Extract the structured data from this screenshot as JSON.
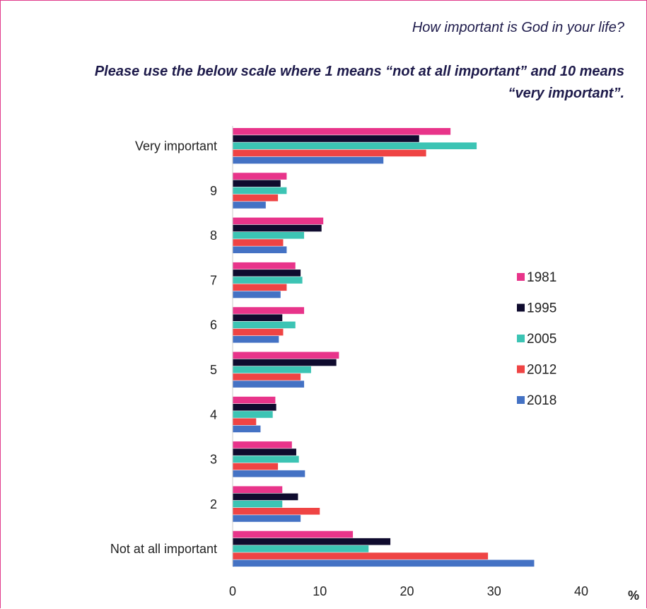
{
  "subtitle": "How important is God in your life?",
  "title": "Please use the below scale where 1 means “not at all important” and 10 means “very important”.",
  "chart_data": {
    "type": "bar",
    "orientation": "horizontal",
    "categories": [
      "Very important",
      "9",
      "8",
      "7",
      "6",
      "5",
      "4",
      "3",
      "2",
      "Not at all important"
    ],
    "series": [
      {
        "name": "1981",
        "color": "#e8348a",
        "values": [
          25,
          6.2,
          10.4,
          7.2,
          8.2,
          12.2,
          4.9,
          6.8,
          5.7,
          13.8
        ]
      },
      {
        "name": "1995",
        "color": "#0f0b2e",
        "values": [
          21.4,
          5.5,
          10.2,
          7.8,
          5.7,
          11.9,
          5.0,
          7.3,
          7.5,
          18.1
        ]
      },
      {
        "name": "2005",
        "color": "#3cc4b4",
        "values": [
          28.0,
          6.2,
          8.2,
          8.0,
          7.2,
          9.0,
          4.6,
          7.6,
          5.7,
          15.6
        ]
      },
      {
        "name": "2012",
        "color": "#ef4444",
        "values": [
          22.2,
          5.2,
          5.8,
          6.2,
          5.8,
          7.8,
          2.7,
          5.2,
          10.0,
          29.3
        ]
      },
      {
        "name": "2018",
        "color": "#4472c4",
        "values": [
          17.3,
          3.8,
          6.2,
          5.5,
          5.3,
          8.2,
          3.2,
          8.3,
          7.8,
          34.6
        ]
      }
    ],
    "xlim": [
      0,
      40
    ],
    "xticks": [
      "0",
      "10",
      "20",
      "30",
      "40"
    ],
    "xunit": "%",
    "legend_position": "right"
  }
}
